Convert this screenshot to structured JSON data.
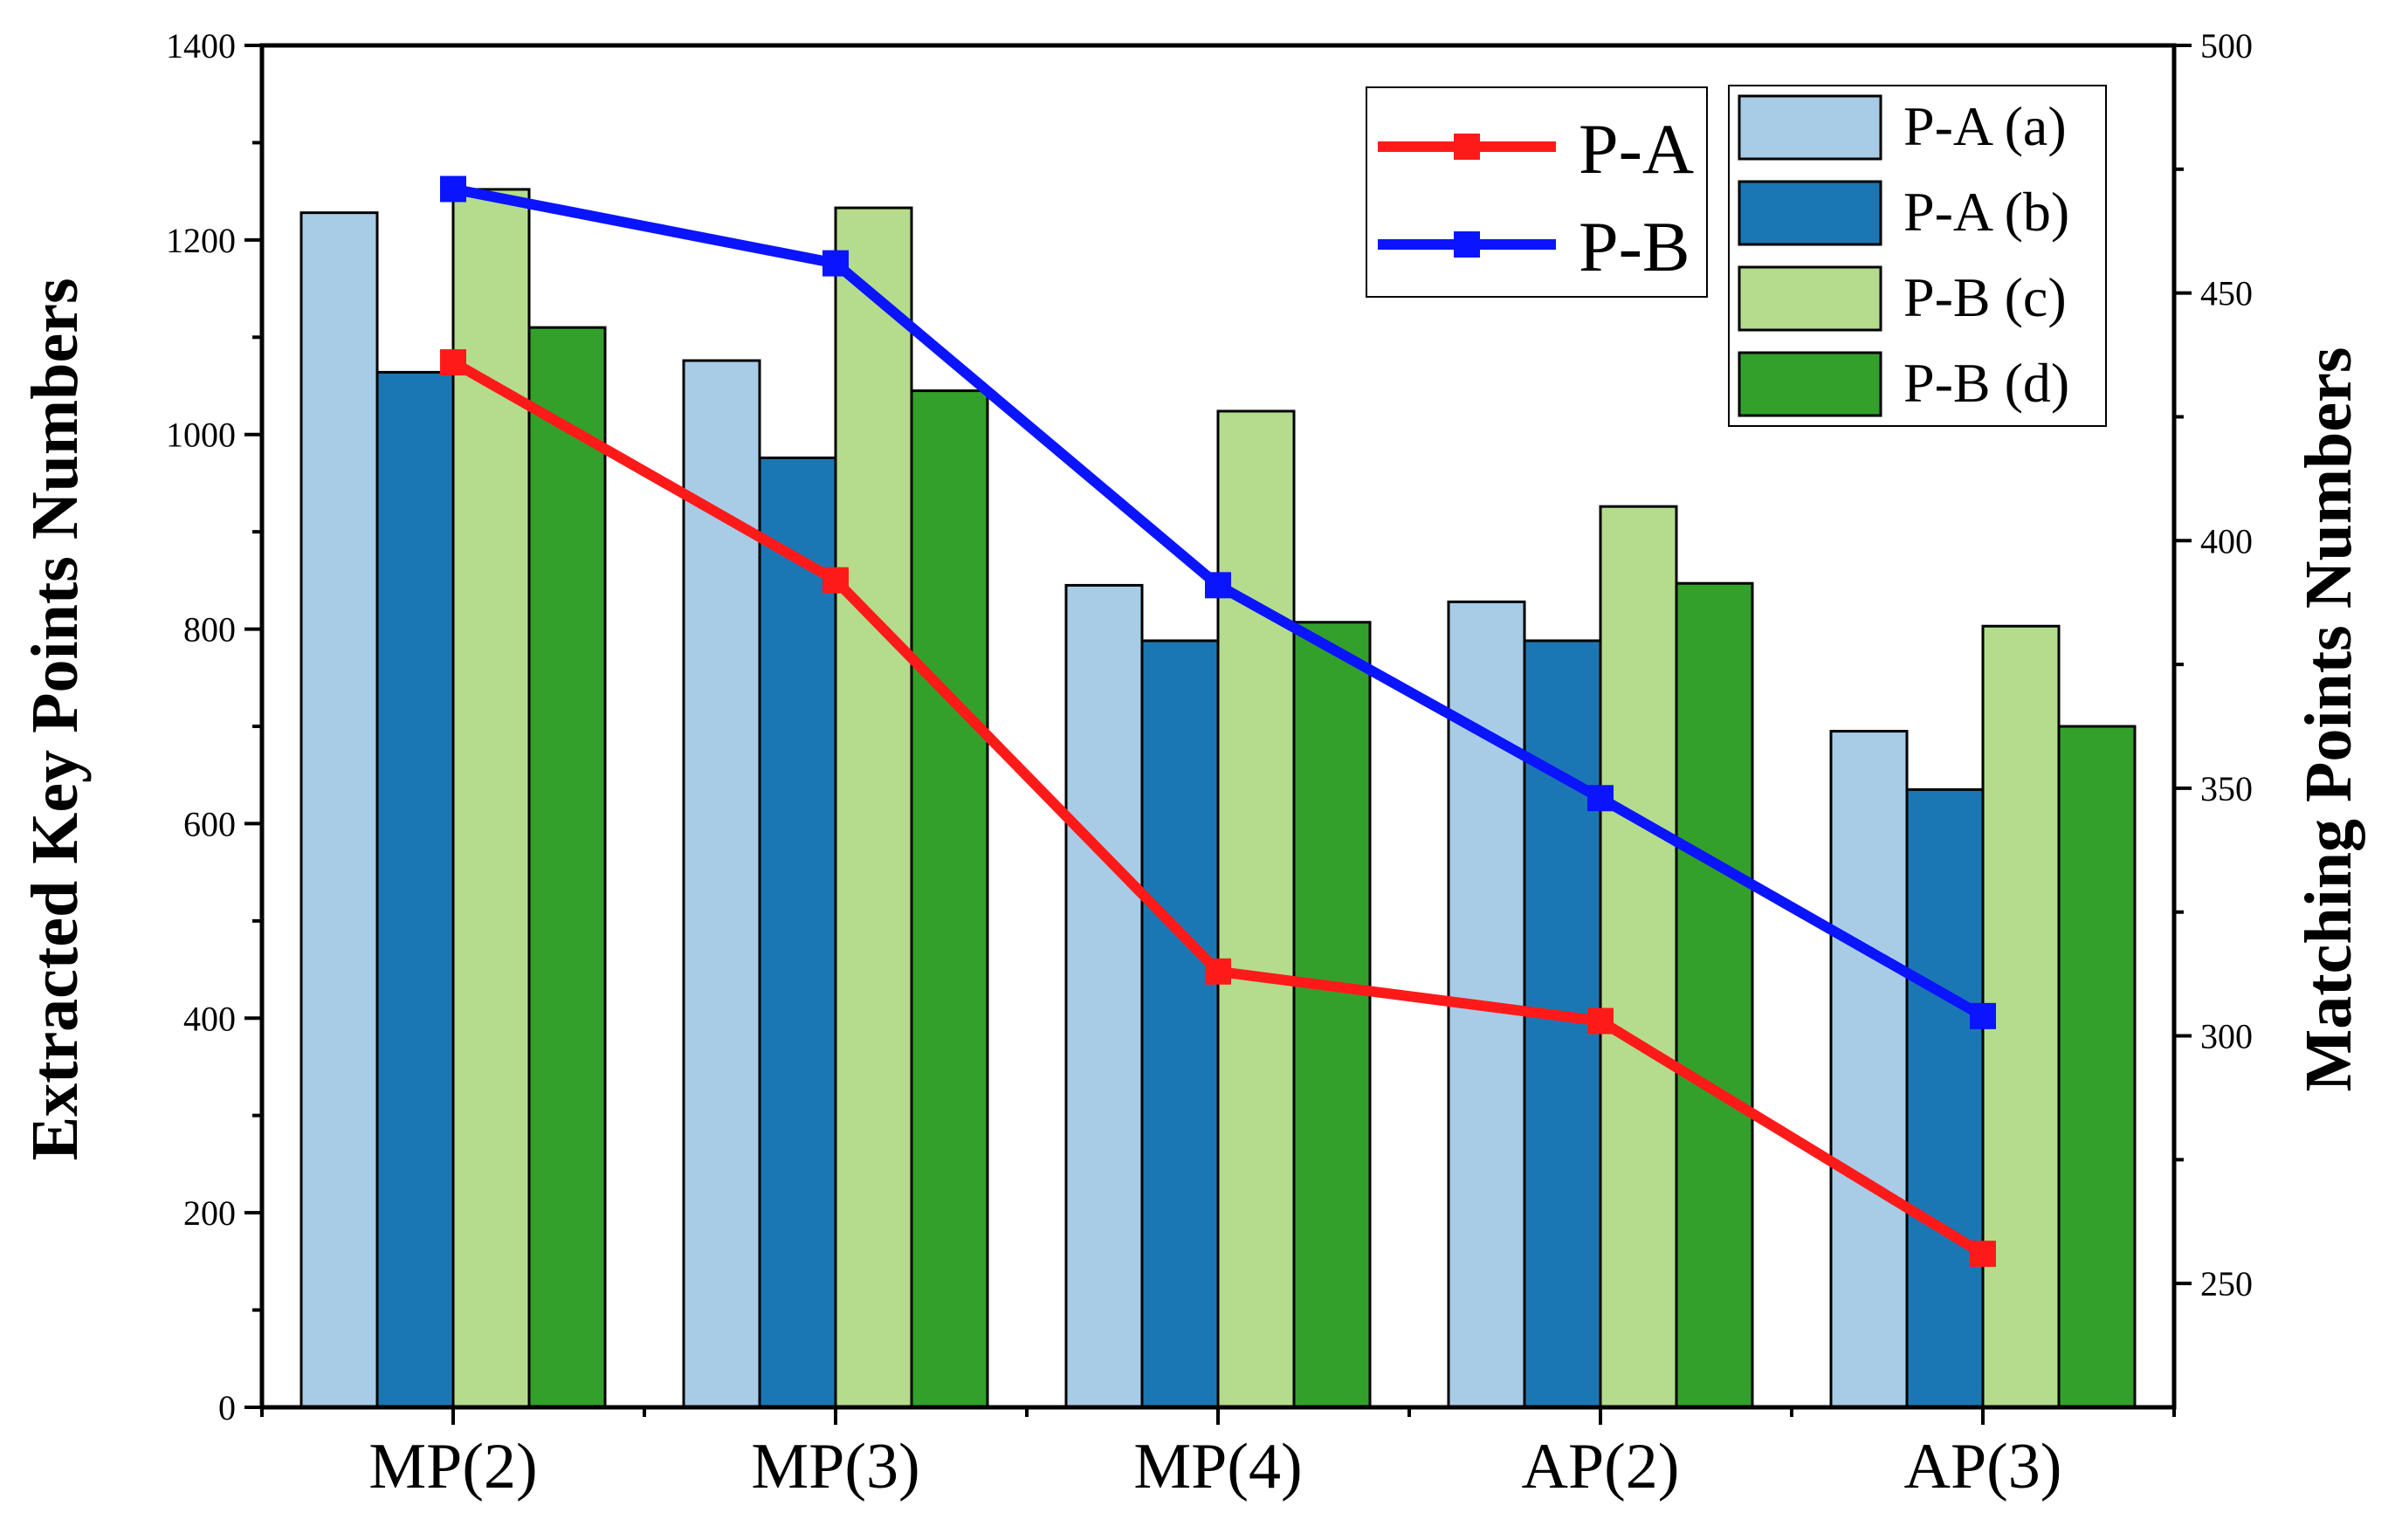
{
  "chart_data": {
    "type": "bar",
    "categories": [
      "MP(2)",
      "MP(3)",
      "MP(4)",
      "AP(2)",
      "AP(3)"
    ],
    "ylabel": "Extracted Key Points Numbers",
    "y2label": "Matching Points Numbers",
    "ylim": [
      0,
      1400
    ],
    "y2lim": [
      225,
      500
    ],
    "yticks": [
      "0",
      "200",
      "400",
      "600",
      "800",
      "1000",
      "1200",
      "1400"
    ],
    "y2ticks": [
      "250",
      "300",
      "350",
      "400",
      "450",
      "500"
    ],
    "series": [
      {
        "name": "P-A (a)",
        "color": "#a8cce6",
        "values": [
          1228,
          1076,
          845,
          828,
          695
        ]
      },
      {
        "name": "P-A (b)",
        "color": "#1b77b4",
        "values": [
          1064,
          976,
          788,
          788,
          635
        ]
      },
      {
        "name": "P-B (c)",
        "color": "#b4dc8c",
        "values": [
          1252,
          1233,
          1024,
          926,
          803
        ]
      },
      {
        "name": "P-B (d)",
        "color": "#33a02c",
        "values": [
          1110,
          1045,
          807,
          847,
          700
        ]
      }
    ],
    "lines": [
      {
        "name": "P-A",
        "color": "#ff1a1a",
        "axis": "right",
        "values": [
          436,
          392,
          313,
          303,
          256
        ]
      },
      {
        "name": "P-B",
        "color": "#0a14ff",
        "axis": "right",
        "values": [
          471,
          456,
          391,
          348,
          304
        ]
      }
    ],
    "legend_placement": "top-right"
  }
}
